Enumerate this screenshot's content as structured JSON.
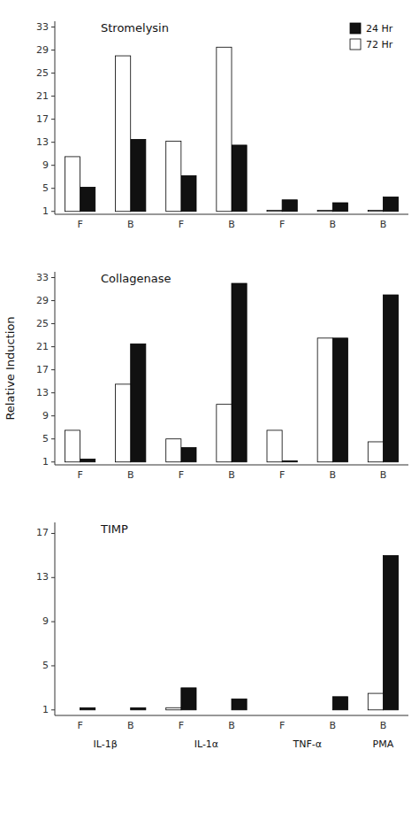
{
  "chart_data": [
    {
      "type": "bar",
      "title": "Stromelysin",
      "categories": [
        "F",
        "B",
        "F",
        "B",
        "F",
        "B",
        "B"
      ],
      "series": [
        {
          "name": "24 Hr",
          "color": "#111111",
          "values": [
            5.2,
            13.5,
            7.2,
            12.5,
            3.0,
            2.5,
            3.5
          ]
        },
        {
          "name": "72 Hr",
          "color": "#ffffff",
          "values": [
            10.5,
            28.0,
            13.2,
            29.5,
            1.2,
            1.2,
            1.2
          ]
        }
      ],
      "baseline": 1,
      "ylim": [
        0.5,
        34
      ],
      "yticks": [
        1,
        5,
        9,
        13,
        17,
        21,
        25,
        29,
        33
      ],
      "grid": false,
      "legend": "upper right"
    },
    {
      "type": "bar",
      "title": "Collagenase",
      "y_label": "Relative Induction",
      "categories": [
        "F",
        "B",
        "F",
        "B",
        "F",
        "B",
        "B"
      ],
      "series": [
        {
          "color": "#111111",
          "values": [
            1.5,
            21.5,
            3.5,
            32.0,
            1.2,
            22.5,
            30.0
          ]
        },
        {
          "color": "#ffffff",
          "values": [
            6.5,
            14.5,
            5.0,
            11.0,
            6.5,
            22.5,
            4.5
          ]
        }
      ],
      "baseline": 1,
      "ylim": [
        0.5,
        34
      ],
      "yticks": [
        1,
        5,
        9,
        13,
        17,
        21,
        25,
        29,
        33
      ],
      "grid": false
    },
    {
      "type": "bar",
      "title": "TIMP",
      "categories": [
        "F",
        "B",
        "F",
        "B",
        "F",
        "B",
        "B"
      ],
      "category_groups": [
        "IL-1β",
        "IL-1β",
        "IL-1α",
        "IL-1α",
        "TNF-α",
        "TNF-α",
        "PMA"
      ],
      "series": [
        {
          "color": "#111111",
          "values": [
            1.2,
            1.2,
            3.0,
            2.0,
            1.0,
            2.2,
            15.0
          ]
        },
        {
          "color": "#ffffff",
          "values": [
            1.0,
            1.0,
            1.2,
            1.0,
            1.0,
            1.0,
            2.5
          ]
        }
      ],
      "baseline": 1,
      "ylim": [
        0.5,
        18
      ],
      "yticks": [
        1,
        5,
        9,
        13,
        17
      ],
      "grid": false
    }
  ]
}
